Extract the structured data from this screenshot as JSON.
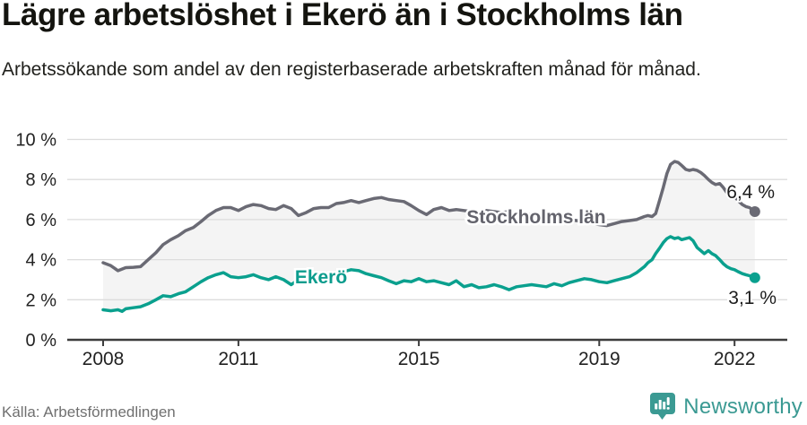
{
  "header": {
    "title": "Lägre arbetslöshet i Ekerö än i Stockholms län",
    "subtitle": "Arbetssökande som andel av den registerbaserade arbetskraften månad för månad."
  },
  "footer": {
    "source": "Källa: Arbetsförmedlingen",
    "brand": "Newsworthy"
  },
  "colors": {
    "stockholm_line": "#6a6a74",
    "stockholm_label": "#63636c",
    "ekero_line": "#0aa08e",
    "ekero_label": "#0b9c8d",
    "grid": "#dcdcdc",
    "axis": "#3d3d3d",
    "fill_between": "#f4f4f4",
    "value_label": "#1c1c1c",
    "tick_label": "#222222",
    "brand_teal": "#3b9a93"
  },
  "chart_data": {
    "type": "line",
    "title": "Lägre arbetslöshet i Ekerö än i Stockholms län",
    "subtitle": "Arbetssökande som andel av den registerbaserade arbetskraften månad för månad.",
    "source": "Källa: Arbetsförmedlingen",
    "unit": "%",
    "grid": true,
    "x_axis": {
      "tick_labels": [
        "2008",
        "2011",
        "2015",
        "2019",
        "2022"
      ],
      "tick_values": [
        2008,
        2011,
        2015,
        2019,
        2022
      ],
      "range": [
        2007.2,
        2023.2
      ]
    },
    "y_axis": {
      "tick_labels": [
        "0 %",
        "2 %",
        "4 %",
        "6 %",
        "8 %",
        "10 %"
      ],
      "tick_values": [
        0,
        2,
        4,
        6,
        8,
        10
      ],
      "range": [
        0,
        10
      ]
    },
    "series": [
      {
        "name": "Stockholms län",
        "inline_label": "Stockholms län",
        "end_label": "6,4 %",
        "end_value": 6.4,
        "color": "#6a6a74",
        "points": [
          [
            2008.0,
            3.85
          ],
          [
            2008.17,
            3.7
          ],
          [
            2008.33,
            3.45
          ],
          [
            2008.5,
            3.6
          ],
          [
            2008.67,
            3.62
          ],
          [
            2008.83,
            3.65
          ],
          [
            2009.0,
            4.0
          ],
          [
            2009.17,
            4.35
          ],
          [
            2009.33,
            4.75
          ],
          [
            2009.5,
            5.0
          ],
          [
            2009.67,
            5.2
          ],
          [
            2009.83,
            5.45
          ],
          [
            2010.0,
            5.6
          ],
          [
            2010.17,
            5.9
          ],
          [
            2010.33,
            6.2
          ],
          [
            2010.5,
            6.45
          ],
          [
            2010.67,
            6.6
          ],
          [
            2010.83,
            6.6
          ],
          [
            2011.0,
            6.45
          ],
          [
            2011.17,
            6.65
          ],
          [
            2011.33,
            6.75
          ],
          [
            2011.5,
            6.7
          ],
          [
            2011.67,
            6.55
          ],
          [
            2011.83,
            6.5
          ],
          [
            2012.0,
            6.7
          ],
          [
            2012.17,
            6.55
          ],
          [
            2012.33,
            6.2
          ],
          [
            2012.5,
            6.35
          ],
          [
            2012.67,
            6.55
          ],
          [
            2012.83,
            6.6
          ],
          [
            2013.0,
            6.6
          ],
          [
            2013.17,
            6.8
          ],
          [
            2013.33,
            6.85
          ],
          [
            2013.5,
            6.95
          ],
          [
            2013.67,
            6.85
          ],
          [
            2013.83,
            6.95
          ],
          [
            2014.0,
            7.05
          ],
          [
            2014.17,
            7.1
          ],
          [
            2014.33,
            7.0
          ],
          [
            2014.5,
            6.95
          ],
          [
            2014.67,
            6.9
          ],
          [
            2014.83,
            6.7
          ],
          [
            2015.0,
            6.45
          ],
          [
            2015.17,
            6.25
          ],
          [
            2015.33,
            6.5
          ],
          [
            2015.5,
            6.6
          ],
          [
            2015.67,
            6.45
          ],
          [
            2015.83,
            6.5
          ],
          [
            2016.0,
            6.45
          ],
          [
            2016.17,
            6.4
          ],
          [
            2016.33,
            6.35
          ],
          [
            2016.5,
            6.45
          ],
          [
            2016.67,
            6.4
          ],
          [
            2016.83,
            6.35
          ],
          [
            2017.0,
            6.4
          ],
          [
            2017.25,
            6.3
          ],
          [
            2017.5,
            6.25
          ],
          [
            2017.75,
            6.15
          ],
          [
            2018.0,
            6.1
          ],
          [
            2018.25,
            6.0
          ],
          [
            2018.5,
            5.95
          ],
          [
            2018.75,
            5.85
          ],
          [
            2019.0,
            5.75
          ],
          [
            2019.17,
            5.7
          ],
          [
            2019.33,
            5.8
          ],
          [
            2019.5,
            5.9
          ],
          [
            2019.67,
            5.95
          ],
          [
            2019.83,
            6.0
          ],
          [
            2020.0,
            6.15
          ],
          [
            2020.08,
            6.2
          ],
          [
            2020.17,
            6.15
          ],
          [
            2020.25,
            6.3
          ],
          [
            2020.33,
            6.9
          ],
          [
            2020.42,
            7.6
          ],
          [
            2020.5,
            8.3
          ],
          [
            2020.58,
            8.75
          ],
          [
            2020.67,
            8.9
          ],
          [
            2020.75,
            8.85
          ],
          [
            2020.83,
            8.7
          ],
          [
            2020.92,
            8.5
          ],
          [
            2021.0,
            8.45
          ],
          [
            2021.08,
            8.5
          ],
          [
            2021.17,
            8.45
          ],
          [
            2021.25,
            8.35
          ],
          [
            2021.33,
            8.2
          ],
          [
            2021.42,
            8.0
          ],
          [
            2021.5,
            7.85
          ],
          [
            2021.58,
            7.75
          ],
          [
            2021.67,
            7.8
          ],
          [
            2021.75,
            7.6
          ],
          [
            2021.83,
            7.35
          ],
          [
            2021.92,
            7.1
          ],
          [
            2022.0,
            7.15
          ],
          [
            2022.08,
            6.95
          ],
          [
            2022.17,
            6.75
          ],
          [
            2022.25,
            6.65
          ],
          [
            2022.33,
            6.6
          ],
          [
            2022.45,
            6.4
          ]
        ]
      },
      {
        "name": "Ekerö",
        "inline_label": "Ekerö",
        "end_label": "3,1 %",
        "end_value": 3.1,
        "color": "#0aa08e",
        "points": [
          [
            2008.0,
            1.5
          ],
          [
            2008.17,
            1.45
          ],
          [
            2008.33,
            1.5
          ],
          [
            2008.42,
            1.42
          ],
          [
            2008.5,
            1.55
          ],
          [
            2008.67,
            1.6
          ],
          [
            2008.83,
            1.65
          ],
          [
            2009.0,
            1.8
          ],
          [
            2009.17,
            2.0
          ],
          [
            2009.33,
            2.2
          ],
          [
            2009.5,
            2.15
          ],
          [
            2009.67,
            2.3
          ],
          [
            2009.83,
            2.4
          ],
          [
            2010.0,
            2.65
          ],
          [
            2010.17,
            2.9
          ],
          [
            2010.33,
            3.1
          ],
          [
            2010.5,
            3.25
          ],
          [
            2010.67,
            3.35
          ],
          [
            2010.83,
            3.15
          ],
          [
            2011.0,
            3.1
          ],
          [
            2011.17,
            3.15
          ],
          [
            2011.33,
            3.25
          ],
          [
            2011.5,
            3.1
          ],
          [
            2011.67,
            3.0
          ],
          [
            2011.83,
            3.15
          ],
          [
            2012.0,
            3.0
          ],
          [
            2012.17,
            2.75
          ],
          [
            2012.33,
            3.0
          ],
          [
            2012.5,
            3.25
          ],
          [
            2012.67,
            3.2
          ],
          [
            2012.83,
            3.1
          ],
          [
            2013.0,
            3.15
          ],
          [
            2013.17,
            3.3
          ],
          [
            2013.33,
            3.4
          ],
          [
            2013.5,
            3.5
          ],
          [
            2013.67,
            3.45
          ],
          [
            2013.83,
            3.3
          ],
          [
            2014.0,
            3.2
          ],
          [
            2014.17,
            3.1
          ],
          [
            2014.33,
            2.95
          ],
          [
            2014.5,
            2.8
          ],
          [
            2014.67,
            2.95
          ],
          [
            2014.83,
            2.9
          ],
          [
            2015.0,
            3.05
          ],
          [
            2015.17,
            2.9
          ],
          [
            2015.33,
            2.95
          ],
          [
            2015.5,
            2.85
          ],
          [
            2015.67,
            2.75
          ],
          [
            2015.83,
            2.95
          ],
          [
            2016.0,
            2.65
          ],
          [
            2016.17,
            2.75
          ],
          [
            2016.33,
            2.6
          ],
          [
            2016.5,
            2.65
          ],
          [
            2016.67,
            2.75
          ],
          [
            2016.83,
            2.65
          ],
          [
            2017.0,
            2.5
          ],
          [
            2017.17,
            2.65
          ],
          [
            2017.33,
            2.7
          ],
          [
            2017.5,
            2.75
          ],
          [
            2017.67,
            2.7
          ],
          [
            2017.83,
            2.65
          ],
          [
            2018.0,
            2.8
          ],
          [
            2018.17,
            2.7
          ],
          [
            2018.33,
            2.85
          ],
          [
            2018.5,
            2.95
          ],
          [
            2018.67,
            3.05
          ],
          [
            2018.83,
            3.0
          ],
          [
            2019.0,
            2.9
          ],
          [
            2019.17,
            2.85
          ],
          [
            2019.33,
            2.95
          ],
          [
            2019.5,
            3.05
          ],
          [
            2019.67,
            3.15
          ],
          [
            2019.83,
            3.35
          ],
          [
            2020.0,
            3.65
          ],
          [
            2020.08,
            3.85
          ],
          [
            2020.17,
            4.0
          ],
          [
            2020.25,
            4.3
          ],
          [
            2020.33,
            4.55
          ],
          [
            2020.42,
            4.85
          ],
          [
            2020.5,
            5.05
          ],
          [
            2020.58,
            5.15
          ],
          [
            2020.67,
            5.05
          ],
          [
            2020.75,
            5.1
          ],
          [
            2020.83,
            5.0
          ],
          [
            2020.92,
            5.05
          ],
          [
            2021.0,
            5.1
          ],
          [
            2021.08,
            4.95
          ],
          [
            2021.17,
            4.6
          ],
          [
            2021.25,
            4.45
          ],
          [
            2021.33,
            4.3
          ],
          [
            2021.42,
            4.45
          ],
          [
            2021.5,
            4.3
          ],
          [
            2021.58,
            4.2
          ],
          [
            2021.67,
            4.0
          ],
          [
            2021.75,
            3.8
          ],
          [
            2021.83,
            3.65
          ],
          [
            2021.92,
            3.55
          ],
          [
            2022.0,
            3.5
          ],
          [
            2022.08,
            3.4
          ],
          [
            2022.17,
            3.3
          ],
          [
            2022.25,
            3.25
          ],
          [
            2022.33,
            3.2
          ],
          [
            2022.45,
            3.1
          ]
        ]
      }
    ]
  }
}
